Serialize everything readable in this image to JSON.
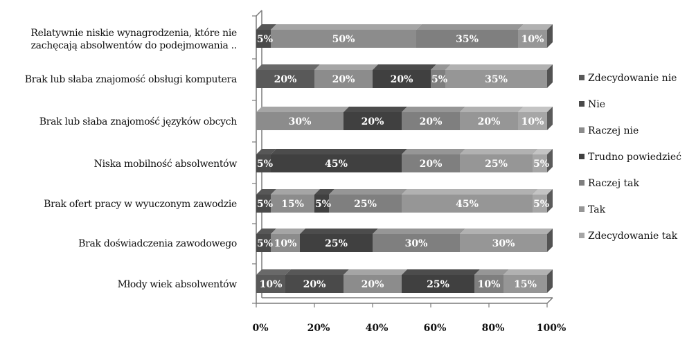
{
  "chart_data": {
    "type": "bar",
    "orientation": "horizontal-stacked-100",
    "categories": [
      [
        "Relatywnie niskie wynagrodzenia, które nie",
        "zachęcają absolwentów do podejmowania .."
      ],
      [
        "Brak lub słaba znajomość obsługi komputera"
      ],
      [
        "Brak lub słaba znajomość języków obcych"
      ],
      [
        "Niska mobilność absolwentów"
      ],
      [
        "Brak ofert pracy w wyuczonym zawodzie"
      ],
      [
        "Brak doświadczenia zawodowego"
      ],
      [
        "Młody wiek absolwentów"
      ]
    ],
    "series": [
      {
        "name": "Zdecydowanie nie",
        "color": "#595959",
        "values": [
          0,
          20,
          0,
          0,
          0,
          0,
          10
        ]
      },
      {
        "name": "Nie",
        "color": "#4a4a4a",
        "values": [
          5,
          0,
          0,
          5,
          5,
          5,
          20
        ]
      },
      {
        "name": "Raczej nie",
        "color": "#8c8c8c",
        "values": [
          50,
          20,
          30,
          0,
          15,
          10,
          20
        ]
      },
      {
        "name": "Trudno powiedzieć",
        "color": "#404040",
        "values": [
          0,
          20,
          20,
          45,
          5,
          25,
          25
        ]
      },
      {
        "name": "Raczej tak",
        "color": "#7f7f7f",
        "values": [
          35,
          5,
          20,
          20,
          25,
          30,
          10
        ]
      },
      {
        "name": "Tak",
        "color": "#969696",
        "values": [
          10,
          35,
          20,
          25,
          45,
          30,
          15
        ]
      },
      {
        "name": "Zdecydowanie tak",
        "color": "#a6a6a6",
        "values": [
          0,
          0,
          10,
          5,
          5,
          0,
          0
        ]
      }
    ],
    "segment_labels": [
      [
        "5%",
        "50%",
        "35%",
        "10%"
      ],
      [
        "20%",
        "20%",
        "20%",
        "5%",
        "35%"
      ],
      [
        "30%",
        "20%",
        "20%",
        "20%",
        "10%"
      ],
      [
        "5%",
        "45%",
        "20%",
        "25%",
        "5%"
      ],
      [
        "5%",
        "15%",
        "5%",
        "25%",
        "45%",
        "5%"
      ],
      [
        "5%",
        "10%",
        "25%",
        "30%",
        "30%"
      ],
      [
        "10%",
        "20%",
        "20%",
        "25%",
        "10%",
        "15%"
      ]
    ],
    "xlim": [
      0,
      100
    ],
    "xticks": [
      "0%",
      "20%",
      "40%",
      "60%",
      "80%",
      "100%"
    ],
    "legend_position": "right",
    "grid": false,
    "title": "",
    "xlabel": "",
    "ylabel": ""
  }
}
